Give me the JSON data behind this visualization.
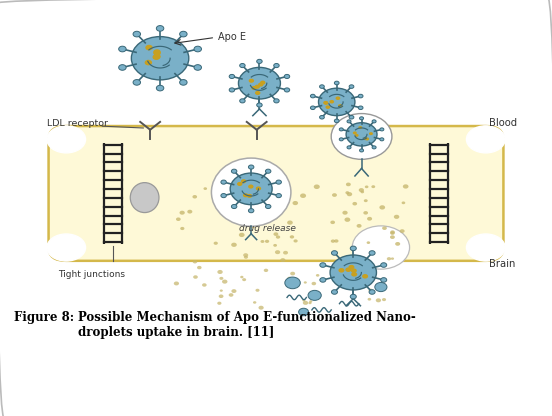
{
  "figure_width": 5.52,
  "figure_height": 4.16,
  "dpi": 100,
  "bg_color": "#ffffff",
  "border_color": "#bbbbbb",
  "membrane_color": "#fef9d7",
  "membrane_border_color": "#d4b84a",
  "tight_junction_color": "#222222",
  "np_body_color": "#7ab0c8",
  "np_dark": "#3a6878",
  "np_spike_color": "#3a6878",
  "np_dot_color": "#c8a020",
  "vesicle_border": "#999999",
  "drug_dot_color": "#c8b870",
  "lysosome_color": "#c8c8c8",
  "lysosome_border": "#999999",
  "caption_bold": "Figure 8:",
  "caption_rest": "  Possible Mechanism of Apo E-functionalized Nano-\ndroplets uptake in brain. [11]",
  "label_apo_e": "Apo E",
  "label_ldl": "LDL receptor",
  "label_blood": "Blood",
  "label_brain": "Brain",
  "label_tight": "Tight junctions",
  "label_drug": "drug release"
}
